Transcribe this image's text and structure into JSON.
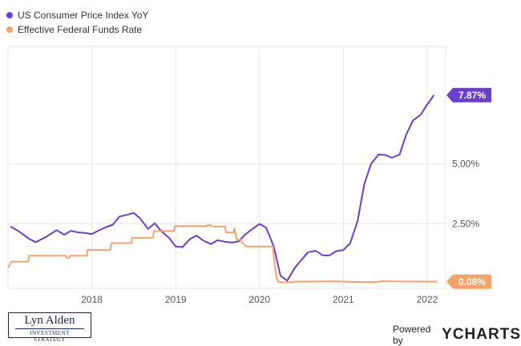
{
  "chart_data": {
    "type": "line",
    "x_ticks": [
      "2018",
      "2019",
      "2020",
      "2021",
      "2022"
    ],
    "y_ticks": [
      "2.50%",
      "5.00%"
    ],
    "ylim": [
      -0.2,
      9.9
    ],
    "grid": true,
    "legend_position": "top-left",
    "series": [
      {
        "name": "US Consumer Price Index YoY",
        "color": "#6a3fcf",
        "end_label": "7.87%",
        "points": [
          [
            2017.03,
            2.38
          ],
          [
            2017.12,
            2.2
          ],
          [
            2017.25,
            1.87
          ],
          [
            2017.33,
            1.73
          ],
          [
            2017.45,
            1.94
          ],
          [
            2017.58,
            2.23
          ],
          [
            2017.67,
            2.04
          ],
          [
            2017.75,
            2.2
          ],
          [
            2017.83,
            2.14
          ],
          [
            2017.92,
            2.11
          ],
          [
            2018.0,
            2.07
          ],
          [
            2018.08,
            2.21
          ],
          [
            2018.17,
            2.36
          ],
          [
            2018.25,
            2.46
          ],
          [
            2018.33,
            2.8
          ],
          [
            2018.42,
            2.87
          ],
          [
            2018.5,
            2.95
          ],
          [
            2018.58,
            2.7
          ],
          [
            2018.67,
            2.28
          ],
          [
            2018.75,
            2.52
          ],
          [
            2018.83,
            2.18
          ],
          [
            2018.92,
            1.91
          ],
          [
            2019.0,
            1.55
          ],
          [
            2019.08,
            1.52
          ],
          [
            2019.17,
            1.86
          ],
          [
            2019.25,
            2.0
          ],
          [
            2019.33,
            1.79
          ],
          [
            2019.42,
            1.65
          ],
          [
            2019.5,
            1.81
          ],
          [
            2019.58,
            1.75
          ],
          [
            2019.67,
            1.71
          ],
          [
            2019.75,
            1.76
          ],
          [
            2019.83,
            2.05
          ],
          [
            2019.92,
            2.29
          ],
          [
            2020.0,
            2.49
          ],
          [
            2020.08,
            2.33
          ],
          [
            2020.17,
            1.54
          ],
          [
            2020.25,
            0.33
          ],
          [
            2020.33,
            0.12
          ],
          [
            2020.42,
            0.65
          ],
          [
            2020.5,
            0.99
          ],
          [
            2020.58,
            1.31
          ],
          [
            2020.67,
            1.37
          ],
          [
            2020.75,
            1.18
          ],
          [
            2020.83,
            1.17
          ],
          [
            2020.92,
            1.36
          ],
          [
            2021.0,
            1.4
          ],
          [
            2021.08,
            1.68
          ],
          [
            2021.17,
            2.62
          ],
          [
            2021.25,
            4.16
          ],
          [
            2021.33,
            4.99
          ],
          [
            2021.42,
            5.39
          ],
          [
            2021.5,
            5.37
          ],
          [
            2021.58,
            5.25
          ],
          [
            2021.67,
            5.39
          ],
          [
            2021.75,
            6.22
          ],
          [
            2021.83,
            6.81
          ],
          [
            2021.92,
            7.04
          ],
          [
            2022.0,
            7.48
          ],
          [
            2022.08,
            7.87
          ]
        ]
      },
      {
        "name": "Effective Federal Funds Rate",
        "color": "#f5a36a",
        "end_label": "0.08%",
        "points": [
          [
            2017.0,
            0.66
          ],
          [
            2017.04,
            0.91
          ],
          [
            2017.24,
            0.91
          ],
          [
            2017.25,
            1.16
          ],
          [
            2017.69,
            1.16
          ],
          [
            2017.7,
            1.08
          ],
          [
            2017.73,
            1.08
          ],
          [
            2017.74,
            1.16
          ],
          [
            2017.94,
            1.16
          ],
          [
            2017.95,
            1.41
          ],
          [
            2018.22,
            1.41
          ],
          [
            2018.23,
            1.69
          ],
          [
            2018.47,
            1.69
          ],
          [
            2018.48,
            1.91
          ],
          [
            2018.73,
            1.91
          ],
          [
            2018.74,
            2.19
          ],
          [
            2018.98,
            2.19
          ],
          [
            2018.99,
            2.4
          ],
          [
            2019.37,
            2.4
          ],
          [
            2019.38,
            2.44
          ],
          [
            2019.42,
            2.44
          ],
          [
            2019.43,
            2.38
          ],
          [
            2019.59,
            2.38
          ],
          [
            2019.6,
            2.13
          ],
          [
            2019.69,
            2.13
          ],
          [
            2019.7,
            2.3
          ],
          [
            2019.72,
            2.0
          ],
          [
            2019.73,
            1.83
          ],
          [
            2019.77,
            1.83
          ],
          [
            2019.8,
            1.68
          ],
          [
            2019.84,
            1.55
          ],
          [
            2020.16,
            1.55
          ],
          [
            2020.17,
            1.1
          ],
          [
            2020.2,
            0.3
          ],
          [
            2020.22,
            0.08
          ],
          [
            2020.3,
            0.05
          ],
          [
            2020.35,
            0.05
          ],
          [
            2020.42,
            0.08
          ],
          [
            2020.92,
            0.09
          ],
          [
            2021.25,
            0.06
          ],
          [
            2021.42,
            0.07
          ],
          [
            2021.45,
            0.1
          ],
          [
            2021.6,
            0.09
          ],
          [
            2022.12,
            0.08
          ]
        ]
      }
    ]
  },
  "branding": {
    "logo_name": "Lyn Alden",
    "logo_subtitle": "INVESTMENT STRATEGY",
    "powered_by": "Powered by",
    "provider": "YCHARTS"
  }
}
